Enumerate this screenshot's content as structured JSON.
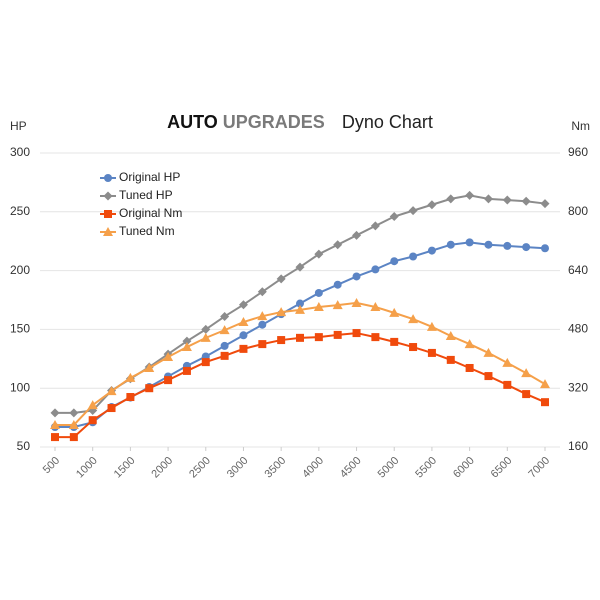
{
  "chart_data": {
    "type": "line",
    "title": [
      "AUTO",
      "UPGRADES",
      "Dyno Chart"
    ],
    "y_label": "HP",
    "y2_label": "Nm",
    "x": [
      500,
      750,
      1000,
      1250,
      1500,
      1750,
      2000,
      2250,
      2500,
      2750,
      3000,
      3250,
      3500,
      3750,
      4000,
      4250,
      4500,
      4750,
      5000,
      5250,
      5500,
      5750,
      6000,
      6250,
      6500,
      6750,
      7000
    ],
    "xlim": [
      500,
      7000
    ],
    "xticks": [
      500,
      1000,
      1500,
      2000,
      2500,
      3000,
      3500,
      4000,
      4500,
      5000,
      5500,
      6000,
      6500,
      7000
    ],
    "ylim": [
      50,
      300
    ],
    "yticks": [
      50,
      100,
      150,
      200,
      250,
      300
    ],
    "y2lim": [
      160,
      960
    ],
    "y2ticks": [
      160,
      320,
      480,
      640,
      800,
      960
    ],
    "grid": true,
    "series": [
      {
        "name": "Original HP",
        "color": "#5b84c4",
        "marker": "circle",
        "values": [
          67,
          67,
          71,
          84,
          92,
          101,
          110,
          119,
          127,
          136,
          145,
          154,
          163,
          172,
          181,
          188,
          195,
          201,
          208,
          212,
          217,
          222,
          224,
          222,
          221,
          220,
          219
        ]
      },
      {
        "name": "Tuned HP",
        "color": "#8c8c8c",
        "marker": "diamond",
        "values": [
          79,
          79,
          81,
          98,
          108,
          118,
          129,
          140,
          150,
          161,
          171,
          182,
          193,
          203,
          214,
          222,
          230,
          238,
          246,
          251,
          256,
          261,
          264,
          261,
          260,
          259,
          257
        ]
      },
      {
        "name": "Original Nm",
        "color": "#f04a0c",
        "marker": "square",
        "axis": "y2",
        "values": [
          187,
          187,
          233,
          266,
          296,
          320,
          342,
          367,
          391,
          408,
          427,
          440,
          451,
          457,
          459,
          465,
          470,
          459,
          446,
          432,
          416,
          397,
          375,
          353,
          329,
          304,
          282
        ]
      },
      {
        "name": "Tuned Nm",
        "color": "#f5a04a",
        "marker": "triangle",
        "axis": "y2",
        "values": [
          220,
          220,
          274,
          312,
          348,
          375,
          405,
          432,
          457,
          478,
          500,
          516,
          527,
          533,
          541,
          546,
          552,
          541,
          525,
          508,
          487,
          462,
          440,
          416,
          389,
          361,
          331
        ]
      }
    ]
  }
}
